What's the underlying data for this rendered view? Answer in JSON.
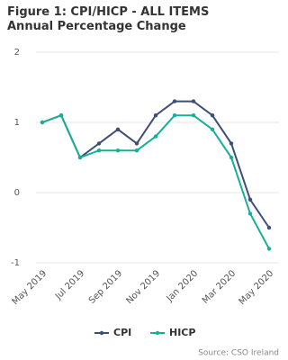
{
  "chart_data": {
    "type": "line",
    "title": "Figure 1: CPI/HICP - ALL ITEMS Annual Percentage Change",
    "categories": [
      "May 2019",
      null,
      "Jul 2019",
      null,
      "Sep 2019",
      null,
      "Nov 2019",
      null,
      "Jan 2020",
      null,
      "Mar 2020",
      null,
      "May 2020"
    ],
    "series": [
      {
        "name": "CPI",
        "color": "#3d4e78",
        "values": [
          1.0,
          1.1,
          0.5,
          0.7,
          0.9,
          0.7,
          1.1,
          1.3,
          1.3,
          1.1,
          0.7,
          -0.1,
          -0.5
        ]
      },
      {
        "name": "HICP",
        "color": "#16b096",
        "values": [
          1.0,
          1.1,
          0.5,
          0.6,
          0.6,
          0.6,
          0.8,
          1.1,
          1.1,
          0.9,
          0.5,
          -0.3,
          -0.8
        ]
      }
    ],
    "ylim": [
      -1,
      2
    ],
    "yticks": [
      -1,
      0,
      1,
      2
    ],
    "grid": true,
    "source": "Source: CSO Ireland"
  }
}
